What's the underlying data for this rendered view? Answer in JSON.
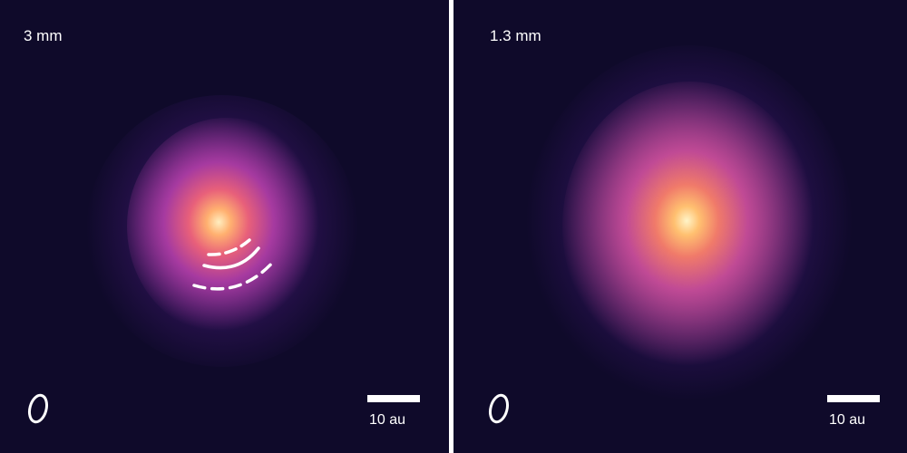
{
  "left_panel": {
    "wavelength_label": "3 mm",
    "scale_label": "10 au"
  },
  "right_panel": {
    "wavelength_label": "1.3 mm",
    "scale_label": "10 au"
  },
  "colors": {
    "background": "#0f0a2a",
    "core": "#fff4c8",
    "halo": "#a63aa0"
  }
}
